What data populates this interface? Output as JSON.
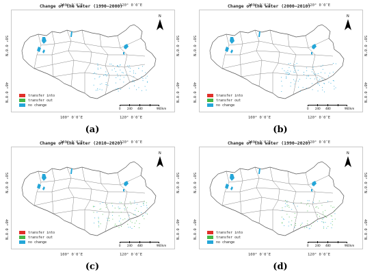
{
  "panels": [
    {
      "caption": "(a)",
      "title": "Change of the water (1990–2000)",
      "lon_labels": [
        "100° 0′0″E",
        "120° 0′0″E"
      ],
      "lat_labels": [
        "50° 0′0″N",
        "40° 0′0″N"
      ],
      "north_label": "N",
      "legend": [
        {
          "label": "transfer into",
          "color": "#e0302a"
        },
        {
          "label": "transfer out",
          "color": "#45b848"
        },
        {
          "label": "no change",
          "color": "#24a6d8"
        }
      ],
      "scale_labels": [
        "0",
        "240",
        "480",
        "",
        "960",
        "km"
      ],
      "accent_change": "#24a6d8"
    },
    {
      "caption": "(b)",
      "title": "Change of the water (2000–2010)",
      "lon_labels": [
        "100° 0′0″E",
        "120° 0′0″E"
      ],
      "lat_labels": [
        "50° 0′0″N",
        "40° 0′0″N"
      ],
      "north_label": "N",
      "legend": [
        {
          "label": "transfer into",
          "color": "#e0302a"
        },
        {
          "label": "transfer out",
          "color": "#45b848"
        },
        {
          "label": "no change",
          "color": "#24a6d8"
        }
      ],
      "scale_labels": [
        "0",
        "240",
        "480",
        "",
        "960",
        "km"
      ],
      "accent_change": "#24a6d8"
    },
    {
      "caption": "(c)",
      "title": "Change of the water (2010–2020)",
      "lon_labels": [
        "100° 0′0″E",
        "120° 0′0″E"
      ],
      "lat_labels": [
        "50° 0′0″N",
        "40° 0′0″N"
      ],
      "north_label": "N",
      "legend": [
        {
          "label": "transfer into",
          "color": "#e0302a"
        },
        {
          "label": "transfer out",
          "color": "#45b848"
        },
        {
          "label": "no change",
          "color": "#24a6d8"
        }
      ],
      "scale_labels": [
        "0",
        "240",
        "480",
        "",
        "960",
        "km"
      ],
      "accent_change": "#45b848"
    },
    {
      "caption": "(d)",
      "title": "Change of the water (1990–2020)",
      "lon_labels": [
        "100° 0′0″E",
        "120° 0′0″E"
      ],
      "lat_labels": [
        "50° 0′0″N",
        "40° 0′0″N"
      ],
      "north_label": "N",
      "legend": [
        {
          "label": "transfer into",
          "color": "#e0302a"
        },
        {
          "label": "transfer out",
          "color": "#45b848"
        },
        {
          "label": "no change",
          "color": "#24a6d8"
        }
      ],
      "scale_labels": [
        "0",
        "240",
        "480",
        "",
        "960",
        "km"
      ],
      "accent_change": "#45b848"
    }
  ]
}
